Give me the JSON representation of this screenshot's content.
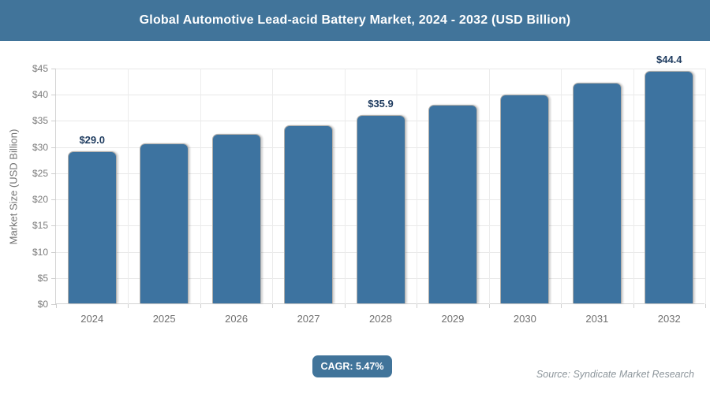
{
  "header": {
    "title": "Global Automotive Lead-acid Battery Market, 2024 - 2032 (USD Billion)"
  },
  "chart_data": {
    "type": "bar",
    "title": "Global Automotive Lead-acid Battery Market, 2024 - 2032 (USD Billion)",
    "categories": [
      "2024",
      "2025",
      "2026",
      "2027",
      "2028",
      "2029",
      "2030",
      "2031",
      "2032"
    ],
    "values": [
      29.0,
      30.6,
      32.3,
      34.0,
      35.9,
      37.9,
      39.9,
      42.1,
      44.4
    ],
    "point_labels": [
      "$29.0",
      null,
      null,
      null,
      "$35.9",
      null,
      null,
      null,
      "$44.4"
    ],
    "xlabel": "",
    "ylabel": "Market Size (USD Billion)",
    "ylim": [
      0,
      45
    ],
    "ytick_step": 5,
    "ytick_labels": [
      "$0",
      "$5",
      "$10",
      "$15",
      "$20",
      "$25",
      "$30",
      "$35",
      "$40",
      "$45"
    ],
    "grid": true,
    "legend": "none",
    "colors": {
      "bar": "#3d73a0",
      "accent": "#41749a",
      "data_label": "#1e3b5f",
      "gridline": "#e8e8e8",
      "axis_text": "#7a7a7a"
    }
  },
  "footer": {
    "cagr_label": "CAGR: 5.47%",
    "source": "Source: Syndicate Market Research"
  }
}
